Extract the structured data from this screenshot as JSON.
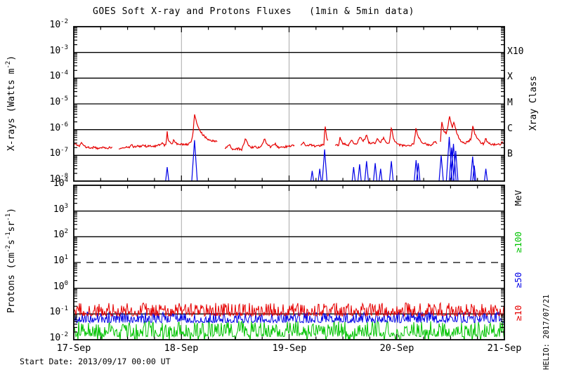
{
  "title": "GOES Soft X-ray and Protons Fluxes   (1min & 5min data)",
  "footer": {
    "start_date": "Start Date: 2013/09/17 00:00 UT",
    "credit": "HELIO: 2017/07/21"
  },
  "xray_panel": {
    "ylabel_parts": {
      "p1": "X-rays (Watts m",
      "sup1": "-2",
      "p2": ")"
    },
    "right_axis_title": "Xray Class"
  },
  "proton_panel": {
    "ylabel_parts": {
      "p1": "Protons (cm",
      "sup1": "-2",
      "p2": "s",
      "sup2": "-1",
      "p3": "sr",
      "sup3": "-1",
      "p4": ")"
    },
    "right_axis_title": "MeV"
  },
  "chart_data": [
    {
      "type": "line",
      "panel": "xray",
      "title": "GOES soft X-ray flux",
      "ylabel": "X-rays (Watts m-2)",
      "y_scale": "log",
      "ylim": [
        1e-08,
        0.01
      ],
      "ytick_exponents": [
        -2,
        -3,
        -4,
        -5,
        -6,
        -7,
        -8
      ],
      "hline_exponents": [
        -3,
        -4,
        -5,
        -6,
        -7
      ],
      "right_class_labels": [
        {
          "label": "X10",
          "exp": -3
        },
        {
          "label": "X",
          "exp": -4
        },
        {
          "label": "M",
          "exp": -5
        },
        {
          "label": "C",
          "exp": -6
        },
        {
          "label": "B",
          "exp": -7
        }
      ],
      "x_tick_labels": [
        "17-Sep",
        "18-Sep",
        "19-Sep",
        "20-Sep",
        "21-Sep"
      ],
      "x_range_days": [
        0,
        4
      ],
      "series": [
        {
          "name": "xray-long-1-8A",
          "color": "#e60000",
          "segments": [
            [
              [
                0.0,
                3e-07
              ],
              [
                0.02,
                2.6e-07
              ],
              [
                0.05,
                2.3e-07
              ],
              [
                0.075,
                3.3e-07
              ],
              [
                0.09,
                2.5e-07
              ],
              [
                0.12,
                2.1e-07
              ],
              [
                0.15,
                1.9e-07
              ],
              [
                0.19,
                2.1e-07
              ],
              [
                0.22,
                1.9e-07
              ],
              [
                0.25,
                2e-07
              ],
              [
                0.28,
                2.1e-07
              ],
              [
                0.31,
                1.9e-07
              ],
              [
                0.34,
                2e-07
              ],
              [
                0.36,
                2e-07
              ]
            ],
            [
              [
                0.42,
                1.8e-07
              ],
              [
                0.45,
                1.9e-07
              ],
              [
                0.48,
                2.1e-07
              ],
              [
                0.51,
                2e-07
              ],
              [
                0.54,
                2.5e-07
              ],
              [
                0.56,
                2.1e-07
              ],
              [
                0.59,
                2.4e-07
              ],
              [
                0.62,
                2.2e-07
              ],
              [
                0.65,
                2.4e-07
              ],
              [
                0.68,
                2.2e-07
              ],
              [
                0.71,
                2.3e-07
              ],
              [
                0.74,
                2.2e-07
              ],
              [
                0.77,
                2.4e-07
              ],
              [
                0.8,
                2.5e-07
              ],
              [
                0.825,
                3.1e-07
              ],
              [
                0.84,
                2.5e-07
              ],
              [
                0.858,
                2.6e-07
              ],
              [
                0.868,
                9e-07
              ],
              [
                0.878,
                3.6e-07
              ],
              [
                0.9,
                2.9e-07
              ],
              [
                0.92,
                3e-07
              ],
              [
                0.93,
                4.2e-07
              ],
              [
                0.945,
                3.1e-07
              ],
              [
                0.97,
                2.7e-07
              ],
              [
                1.0,
                2.8e-07
              ],
              [
                1.03,
                2.6e-07
              ],
              [
                1.06,
                2.7e-07
              ],
              [
                1.09,
                3.2e-07
              ],
              [
                1.105,
                6e-07
              ],
              [
                1.122,
                3.8e-06
              ],
              [
                1.14,
                2e-06
              ],
              [
                1.165,
                1.1e-06
              ],
              [
                1.19,
                7e-07
              ],
              [
                1.22,
                5e-07
              ],
              [
                1.25,
                4.2e-07
              ],
              [
                1.28,
                3.8e-07
              ],
              [
                1.33,
                3.5e-07
              ]
            ],
            [
              [
                1.4,
                1.8e-07
              ],
              [
                1.445,
                2.6e-07
              ],
              [
                1.465,
                1.8e-07
              ],
              [
                1.5,
                1.7e-07
              ],
              [
                1.53,
                1.8e-07
              ],
              [
                1.56,
                1.7e-07
              ],
              [
                1.595,
                4.4e-07
              ],
              [
                1.62,
                2.6e-07
              ],
              [
                1.65,
                2e-07
              ],
              [
                1.68,
                2.2e-07
              ],
              [
                1.71,
                1.9e-07
              ],
              [
                1.75,
                2.6e-07
              ],
              [
                1.77,
                4.3e-07
              ],
              [
                1.8,
                2.6e-07
              ],
              [
                1.83,
                2.1e-07
              ],
              [
                1.87,
                2.8e-07
              ],
              [
                1.9,
                2e-07
              ],
              [
                1.94,
                2.1e-07
              ],
              [
                1.98,
                2.2e-07
              ],
              [
                2.02,
                2.4e-07
              ],
              [
                2.05,
                2.3e-07
              ]
            ],
            [
              [
                2.105,
                2.6e-07
              ],
              [
                2.135,
                3.1e-07
              ],
              [
                2.16,
                2.4e-07
              ],
              [
                2.2,
                2.5e-07
              ],
              [
                2.24,
                2.3e-07
              ],
              [
                2.28,
                2.4e-07
              ],
              [
                2.31,
                2.5e-07
              ],
              [
                2.326,
                2.8e-07
              ],
              [
                2.332,
                1.6e-06
              ],
              [
                2.35,
                4.5e-07
              ],
              [
                2.36,
                4e-07
              ]
            ],
            [
              [
                2.43,
                2.4e-07
              ],
              [
                2.46,
                2.5e-07
              ],
              [
                2.475,
                5.2e-07
              ],
              [
                2.49,
                3e-07
              ],
              [
                2.52,
                2.7e-07
              ],
              [
                2.55,
                2.5e-07
              ],
              [
                2.58,
                4e-07
              ],
              [
                2.6,
                3e-07
              ],
              [
                2.63,
                2.8e-07
              ],
              [
                2.66,
                5.5e-07
              ],
              [
                2.69,
                3.5e-07
              ],
              [
                2.72,
                6e-07
              ],
              [
                2.74,
                3.2e-07
              ],
              [
                2.77,
                2.9e-07
              ],
              [
                2.8,
                3.1e-07
              ],
              [
                2.82,
                4.5e-07
              ],
              [
                2.85,
                3.2e-07
              ],
              [
                2.88,
                4.8e-07
              ],
              [
                2.9,
                3e-07
              ],
              [
                2.93,
                2.9e-07
              ],
              [
                2.952,
                1.35e-06
              ],
              [
                2.97,
                4.2e-07
              ],
              [
                3.0,
                2.8e-07
              ],
              [
                3.03,
                2.5e-07
              ],
              [
                3.07,
                2.4e-07
              ],
              [
                3.1,
                2.5e-07
              ],
              [
                3.13,
                2.4e-07
              ],
              [
                3.16,
                3e-07
              ],
              [
                3.178,
                1.05e-06
              ],
              [
                3.2,
                5e-07
              ],
              [
                3.23,
                3.4e-07
              ],
              [
                3.27,
                2.7e-07
              ],
              [
                3.3,
                2.5e-07
              ],
              [
                3.33,
                2.6e-07
              ],
              [
                3.36,
                3.5e-07
              ],
              [
                3.375,
                3e-07
              ]
            ],
            [
              [
                3.405,
                3e-07
              ],
              [
                3.418,
                2.2e-06
              ],
              [
                3.435,
                9e-07
              ],
              [
                3.458,
                7e-07
              ],
              [
                3.475,
                1.3e-06
              ],
              [
                3.49,
                3.7e-06
              ],
              [
                3.505,
                1.8e-06
              ],
              [
                3.515,
                1.2e-06
              ],
              [
                3.528,
                2.1e-06
              ],
              [
                3.548,
                1e-06
              ],
              [
                3.575,
                5e-07
              ],
              [
                3.6,
                3.5e-07
              ],
              [
                3.63,
                3e-07
              ],
              [
                3.665,
                3.3e-07
              ],
              [
                3.69,
                4.5e-07
              ],
              [
                3.707,
                1.4e-06
              ],
              [
                3.725,
                7e-07
              ],
              [
                3.755,
                4e-07
              ],
              [
                3.785,
                3e-07
              ],
              [
                3.81,
                2.8e-07
              ],
              [
                3.828,
                5e-07
              ],
              [
                3.84,
                3.2e-07
              ],
              [
                3.87,
                2.7e-07
              ],
              [
                3.9,
                2.6e-07
              ],
              [
                3.93,
                2.7e-07
              ],
              [
                3.96,
                2.6e-07
              ],
              [
                3.978,
                3.3e-07
              ],
              [
                4.0,
                2.8e-07
              ]
            ]
          ]
        },
        {
          "name": "xray-short-0.5-4A",
          "color": "#0000e6",
          "spikes": [
            [
              0.868,
              3.5e-08
            ],
            [
              1.122,
              3.9e-07
            ],
            [
              2.215,
              2.5e-08
            ],
            [
              2.285,
              3e-08
            ],
            [
              2.33,
              1.7e-07
            ],
            [
              2.6,
              3.5e-08
            ],
            [
              2.655,
              4.5e-08
            ],
            [
              2.72,
              6e-08
            ],
            [
              2.8,
              5e-08
            ],
            [
              2.85,
              3e-08
            ],
            [
              2.95,
              6e-08
            ],
            [
              3.18,
              6.5e-08
            ],
            [
              3.2,
              5e-08
            ],
            [
              3.413,
              1e-07
            ],
            [
              3.488,
              5.2e-07
            ],
            [
              3.51,
              2e-07
            ],
            [
              3.527,
              2.8e-07
            ],
            [
              3.548,
              1.5e-07
            ],
            [
              3.705,
              9e-08
            ],
            [
              3.72,
              4e-08
            ],
            [
              3.828,
              3e-08
            ]
          ]
        }
      ]
    },
    {
      "type": "line",
      "panel": "protons",
      "title": "GOES proton flux",
      "ylabel": "Protons (cm-2s-1sr-1)",
      "y_scale": "log",
      "ylim": [
        0.01,
        10000.0
      ],
      "ytick_exponents": [
        4,
        3,
        2,
        1,
        0,
        -1,
        -2
      ],
      "hline_solid_exponents": [
        3,
        2,
        0,
        -1
      ],
      "hline_dashed_exponents": [
        1
      ],
      "x_tick_labels": [
        "17-Sep",
        "18-Sep",
        "19-Sep",
        "20-Sep",
        "21-Sep"
      ],
      "x_range_days": [
        0,
        4
      ],
      "noise_seed": 20130917,
      "channels": [
        {
          "label": "≥100",
          "color": "#00c300",
          "typical_flux": 0.02,
          "log_base": -1.88,
          "log_up": 0.62,
          "dip_prob": 0.04,
          "dip_log": -2.05
        },
        {
          "label": "≥50",
          "color": "#0000e6",
          "typical_flux": 0.06,
          "log_base": -1.34,
          "log_up": 0.42,
          "dip_prob": 0.0,
          "dip_log": 0
        },
        {
          "label": "≥10",
          "color": "#e60000",
          "typical_flux": 0.12,
          "log_base": -1.08,
          "log_up": 0.52,
          "dip_prob": 0.0,
          "dip_log": 0
        }
      ]
    }
  ]
}
